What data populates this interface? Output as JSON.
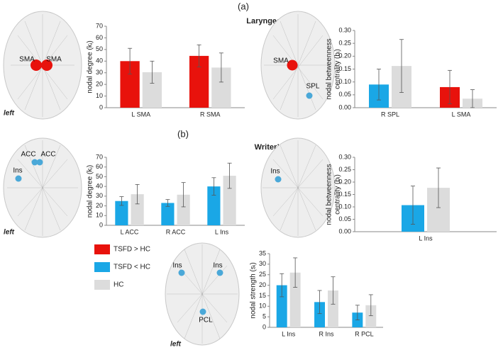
{
  "header": {
    "panel_a": "(a)",
    "title_a": "Laryngeal Dystonia",
    "panel_b": "(b)",
    "title_b": "Writer’s Cramp"
  },
  "legend": [
    {
      "label": "TSFD > HC",
      "color": "#e8120c"
    },
    {
      "label": "TSFD < HC",
      "color": "#1aa7e6"
    },
    {
      "label": "HC",
      "color": "#dcdcdc"
    }
  ],
  "brains": [
    {
      "labels": [
        "SMA",
        "SMA"
      ],
      "side": "left"
    },
    {
      "labels": [
        "SMA",
        "SPL"
      ]
    },
    {
      "labels": [
        "ACC",
        "ACC",
        "Ins"
      ],
      "side": "left"
    },
    {
      "labels": [
        "Ins"
      ]
    },
    {
      "labels": [
        "Ins",
        "Ins",
        "PCL"
      ],
      "side": "left"
    }
  ],
  "chart_data": [
    {
      "type": "bar",
      "ylabel": [
        "nodal degree (kᵢ)"
      ],
      "categories": [
        "L SMA",
        "R SMA"
      ],
      "series": [
        {
          "colors": [
            "#e8120c",
            "#e8120c"
          ],
          "values": [
            40,
            44.5
          ],
          "errors": [
            11,
            9.5
          ]
        },
        {
          "color": "#dcdcdc",
          "values": [
            30.5,
            34.5
          ],
          "errors": [
            9.5,
            12.5
          ]
        }
      ],
      "ylim": [
        0,
        70
      ],
      "yticks": [
        0,
        10,
        20,
        30,
        40,
        50,
        60,
        70
      ]
    },
    {
      "type": "bar",
      "ylabel": [
        "nodal betweenness",
        "centrality (bᵢ)"
      ],
      "categories": [
        "R SPL",
        "L SMA"
      ],
      "series": [
        {
          "colors": [
            "#1aa7e6",
            "#e8120c"
          ],
          "values": [
            0.09,
            0.08
          ],
          "errors": [
            0.06,
            0.065
          ]
        },
        {
          "color": "#dcdcdc",
          "values": [
            0.162,
            0.035
          ],
          "errors": [
            0.103,
            0.035
          ]
        }
      ],
      "ylim": [
        0,
        0.3
      ],
      "yticks": [
        {
          "value": 0,
          "label": "0.00"
        },
        {
          "value": 0.05,
          "label": "0.05"
        },
        {
          "value": 0.1,
          "label": "0.10"
        },
        {
          "value": 0.15,
          "label": "0.15"
        },
        {
          "value": 0.2,
          "label": "0.20"
        },
        {
          "value": 0.25,
          "label": "0.25"
        },
        {
          "value": 0.3,
          "label": "0.30"
        }
      ]
    },
    {
      "type": "bar",
      "ylabel": [
        "nodal degree (kᵢ)"
      ],
      "categories": [
        "L ACC",
        "R ACC",
        "L Ins"
      ],
      "series": [
        {
          "colors": [
            "#1aa7e6",
            "#1aa7e6",
            "#1aa7e6"
          ],
          "values": [
            25,
            23,
            40
          ],
          "errors": [
            4.5,
            3.5,
            9
          ]
        },
        {
          "color": "#dcdcdc",
          "values": [
            32,
            31.5,
            51
          ],
          "errors": [
            10,
            12.5,
            13
          ]
        }
      ],
      "ylim": [
        0,
        70
      ],
      "yticks": [
        0,
        10,
        20,
        30,
        40,
        50,
        60,
        70
      ]
    },
    {
      "type": "bar",
      "ylabel": [
        "nodal betweenness",
        "centrality (bᵢ)"
      ],
      "categories": [
        "L Ins"
      ],
      "series": [
        {
          "colors": [
            "#1aa7e6"
          ],
          "values": [
            0.107
          ],
          "errors": [
            0.077
          ]
        },
        {
          "color": "#dcdcdc",
          "values": [
            0.177
          ],
          "errors": [
            0.08
          ]
        }
      ],
      "ylim": [
        0,
        0.3
      ],
      "yticks": [
        {
          "value": 0,
          "label": "0.00"
        },
        {
          "value": 0.05,
          "label": "0.05"
        },
        {
          "value": 0.1,
          "label": "0.10"
        },
        {
          "value": 0.15,
          "label": "0.15"
        },
        {
          "value": 0.2,
          "label": "0.20"
        },
        {
          "value": 0.25,
          "label": "0.25"
        },
        {
          "value": 0.3,
          "label": "0.30"
        }
      ]
    },
    {
      "type": "bar",
      "ylabel": [
        "nodal strength (sᵢ)"
      ],
      "categories": [
        "L Ins",
        "R Ins",
        "R PCL"
      ],
      "series": [
        {
          "colors": [
            "#1aa7e6",
            "#1aa7e6",
            "#1aa7e6"
          ],
          "values": [
            20,
            12,
            7
          ],
          "errors": [
            5.5,
            5.5,
            3.5
          ]
        },
        {
          "color": "#dcdcdc",
          "values": [
            26,
            17.5,
            10.5
          ],
          "errors": [
            7,
            6.5,
            5
          ]
        }
      ],
      "ylim": [
        0,
        35
      ],
      "yticks": [
        0,
        5,
        10,
        15,
        20,
        25,
        30,
        35
      ]
    }
  ]
}
